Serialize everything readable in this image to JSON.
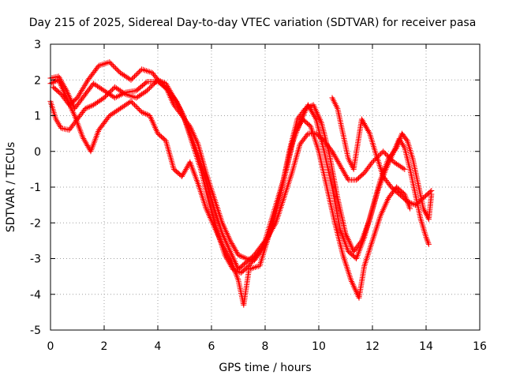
{
  "chart_data": {
    "type": "scatter",
    "title": "Day 215 of 2025, Sidereal Day-to-day VTEC variation (SDTVAR) for receiver pasa",
    "xlabel": "GPS time / hours",
    "ylabel": "SDTVAR / TECUs",
    "xlim": [
      0,
      16
    ],
    "ylim": [
      -5,
      3
    ],
    "x_ticks": [
      "0",
      "2",
      "4",
      "6",
      "8",
      "10",
      "12",
      "14",
      "16"
    ],
    "y_ticks": [
      "-5",
      "-4",
      "-3",
      "-2",
      "-1",
      "0",
      "1",
      "2",
      "3"
    ],
    "grid": true,
    "marker": "+",
    "color": "#ff0000",
    "series": [
      {
        "points": [
          [
            0.0,
            2.05
          ],
          [
            0.3,
            2.1
          ],
          [
            0.6,
            1.7
          ],
          [
            0.9,
            1.2
          ],
          [
            1.2,
            1.5
          ],
          [
            1.6,
            1.9
          ],
          [
            2.0,
            1.7
          ],
          [
            2.4,
            1.5
          ],
          [
            2.8,
            1.65
          ],
          [
            3.2,
            1.7
          ],
          [
            3.6,
            1.95
          ],
          [
            4.0,
            1.95
          ],
          [
            4.3,
            1.8
          ],
          [
            4.6,
            1.3
          ],
          [
            4.9,
            1.0
          ],
          [
            5.2,
            0.7
          ],
          [
            5.5,
            0.2
          ],
          [
            5.8,
            -0.6
          ],
          [
            6.1,
            -1.3
          ],
          [
            6.4,
            -2.0
          ],
          [
            6.7,
            -2.5
          ],
          [
            7.0,
            -2.9
          ],
          [
            7.3,
            -3.0
          ],
          [
            7.6,
            -3.05
          ],
          [
            8.0,
            -2.6
          ],
          [
            8.3,
            -2.0
          ],
          [
            8.6,
            -1.1
          ],
          [
            8.9,
            0.0
          ],
          [
            9.2,
            0.9
          ],
          [
            9.5,
            1.2
          ],
          [
            9.8,
            1.3
          ],
          [
            10.1,
            0.8
          ],
          [
            10.4,
            -0.1
          ],
          [
            10.7,
            -1.3
          ],
          [
            11.0,
            -2.3
          ],
          [
            11.3,
            -2.8
          ],
          [
            11.6,
            -2.5
          ],
          [
            11.9,
            -1.9
          ],
          [
            12.2,
            -1.1
          ],
          [
            12.5,
            -0.5
          ],
          [
            12.8,
            0.0
          ],
          [
            13.0,
            0.35
          ],
          [
            13.2,
            0.1
          ],
          [
            13.4,
            -0.5
          ],
          [
            13.6,
            -1.2
          ],
          [
            13.8,
            -1.9
          ],
          [
            14.0,
            -2.4
          ],
          [
            14.1,
            -2.6
          ]
        ]
      },
      {
        "points": [
          [
            0.0,
            1.4
          ],
          [
            0.2,
            0.9
          ],
          [
            0.4,
            0.65
          ],
          [
            0.7,
            0.6
          ],
          [
            1.0,
            0.9
          ],
          [
            1.3,
            1.2
          ],
          [
            1.6,
            1.3
          ],
          [
            2.0,
            1.5
          ],
          [
            2.4,
            1.8
          ],
          [
            2.8,
            1.6
          ],
          [
            3.2,
            1.5
          ],
          [
            3.6,
            1.7
          ],
          [
            4.0,
            2.0
          ],
          [
            4.3,
            1.9
          ],
          [
            4.6,
            1.5
          ],
          [
            4.9,
            1.1
          ],
          [
            5.2,
            0.5
          ],
          [
            5.5,
            -0.1
          ],
          [
            5.8,
            -0.8
          ],
          [
            6.1,
            -1.6
          ],
          [
            6.4,
            -2.3
          ],
          [
            6.7,
            -2.8
          ],
          [
            7.0,
            -3.3
          ],
          [
            7.3,
            -3.1
          ],
          [
            7.6,
            -2.9
          ],
          [
            8.0,
            -2.5
          ],
          [
            8.4,
            -1.5
          ],
          [
            8.8,
            -0.5
          ],
          [
            9.1,
            0.5
          ],
          [
            9.4,
            0.9
          ],
          [
            9.7,
            0.7
          ],
          [
            10.0,
            0.0
          ],
          [
            10.3,
            -1.0
          ],
          [
            10.6,
            -2.0
          ],
          [
            10.9,
            -2.9
          ],
          [
            11.2,
            -3.6
          ],
          [
            11.5,
            -4.1
          ],
          [
            11.7,
            -3.2
          ],
          [
            12.0,
            -2.5
          ],
          [
            12.3,
            -1.8
          ],
          [
            12.6,
            -1.3
          ],
          [
            12.9,
            -1.0
          ],
          [
            13.2,
            -1.2
          ],
          [
            13.4,
            -1.6
          ]
        ]
      },
      {
        "points": [
          [
            0.1,
            1.8
          ],
          [
            0.4,
            1.6
          ],
          [
            0.7,
            1.3
          ],
          [
            1.0,
            1.5
          ],
          [
            1.4,
            2.0
          ],
          [
            1.8,
            2.4
          ],
          [
            2.2,
            2.5
          ],
          [
            2.6,
            2.2
          ],
          [
            3.0,
            2.0
          ],
          [
            3.4,
            2.3
          ],
          [
            3.8,
            2.2
          ],
          [
            4.1,
            1.9
          ],
          [
            4.4,
            1.7
          ],
          [
            4.7,
            1.4
          ],
          [
            5.0,
            0.9
          ],
          [
            5.3,
            0.2
          ],
          [
            5.6,
            -0.5
          ],
          [
            5.9,
            -1.4
          ],
          [
            6.2,
            -2.2
          ],
          [
            6.5,
            -2.9
          ],
          [
            6.8,
            -3.3
          ],
          [
            7.1,
            -3.4
          ],
          [
            7.4,
            -3.2
          ],
          [
            7.8,
            -2.8
          ],
          [
            8.1,
            -2.4
          ],
          [
            8.4,
            -2.0
          ],
          [
            8.7,
            -1.3
          ],
          [
            9.0,
            -0.6
          ],
          [
            9.3,
            0.2
          ],
          [
            9.6,
            0.5
          ],
          [
            9.9,
            0.5
          ],
          [
            10.2,
            0.3
          ],
          [
            10.5,
            0.0
          ],
          [
            10.8,
            -0.4
          ],
          [
            11.1,
            -0.8
          ],
          [
            11.4,
            -0.8
          ],
          [
            11.7,
            -0.6
          ],
          [
            12.0,
            -0.3
          ],
          [
            12.4,
            0.0
          ],
          [
            12.8,
            -0.3
          ],
          [
            13.2,
            -0.5
          ]
        ]
      },
      {
        "points": [
          [
            0.0,
            1.9
          ],
          [
            0.3,
            2.0
          ],
          [
            0.6,
            1.5
          ],
          [
            0.9,
            1.0
          ],
          [
            1.2,
            0.4
          ],
          [
            1.5,
            0.0
          ],
          [
            1.8,
            0.6
          ],
          [
            2.2,
            1.0
          ],
          [
            2.6,
            1.2
          ],
          [
            3.0,
            1.4
          ],
          [
            3.4,
            1.1
          ],
          [
            3.7,
            1.0
          ],
          [
            4.0,
            0.5
          ],
          [
            4.3,
            0.3
          ],
          [
            4.6,
            -0.5
          ],
          [
            4.9,
            -0.7
          ],
          [
            5.2,
            -0.3
          ],
          [
            5.5,
            -0.9
          ],
          [
            5.8,
            -1.6
          ],
          [
            6.1,
            -2.1
          ],
          [
            6.4,
            -2.6
          ],
          [
            6.7,
            -3.0
          ],
          [
            7.0,
            -3.6
          ],
          [
            7.2,
            -4.3
          ],
          [
            7.4,
            -3.3
          ],
          [
            7.8,
            -3.2
          ],
          [
            8.2,
            -2.2
          ],
          [
            8.6,
            -1.1
          ],
          [
            9.0,
            0.2
          ],
          [
            9.3,
            0.8
          ],
          [
            9.6,
            1.3
          ],
          [
            9.9,
            0.9
          ],
          [
            10.2,
            0.0
          ],
          [
            10.5,
            -1.0
          ],
          [
            10.8,
            -2.2
          ],
          [
            11.1,
            -2.8
          ],
          [
            11.4,
            -3.0
          ],
          [
            11.7,
            -2.4
          ],
          [
            12.0,
            -1.6
          ],
          [
            12.3,
            -0.8
          ],
          [
            12.6,
            -0.2
          ],
          [
            12.9,
            0.1
          ],
          [
            13.1,
            0.5
          ],
          [
            13.3,
            0.3
          ],
          [
            13.5,
            -0.2
          ],
          [
            13.7,
            -0.9
          ],
          [
            13.9,
            -1.6
          ],
          [
            14.1,
            -1.9
          ],
          [
            14.2,
            -1.2
          ]
        ]
      },
      {
        "points": [
          [
            10.5,
            1.5
          ],
          [
            10.7,
            1.2
          ],
          [
            10.9,
            0.5
          ],
          [
            11.1,
            -0.2
          ],
          [
            11.3,
            -0.5
          ],
          [
            11.6,
            0.9
          ],
          [
            11.9,
            0.5
          ],
          [
            12.1,
            0.0
          ],
          [
            12.4,
            -0.7
          ],
          [
            12.7,
            -1.0
          ],
          [
            13.0,
            -1.2
          ],
          [
            13.3,
            -1.4
          ],
          [
            13.6,
            -1.5
          ],
          [
            13.9,
            -1.3
          ],
          [
            14.2,
            -1.1
          ]
        ]
      }
    ]
  }
}
